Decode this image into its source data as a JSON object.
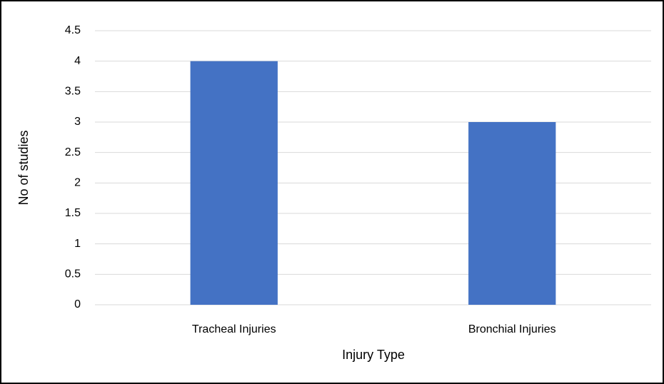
{
  "chart_data": {
    "type": "bar",
    "x_label": "Injury Type",
    "y_label": "No of studies",
    "categories": [
      "Tracheal Injuries",
      "Bronchial Injuries"
    ],
    "values": [
      4,
      3
    ],
    "color": "#4472c4",
    "ylim": [
      0,
      4.5
    ],
    "yticks": [
      0,
      0.5,
      1,
      1.5,
      2,
      2.5,
      3,
      3.5,
      4,
      4.5
    ],
    "grid": true
  }
}
